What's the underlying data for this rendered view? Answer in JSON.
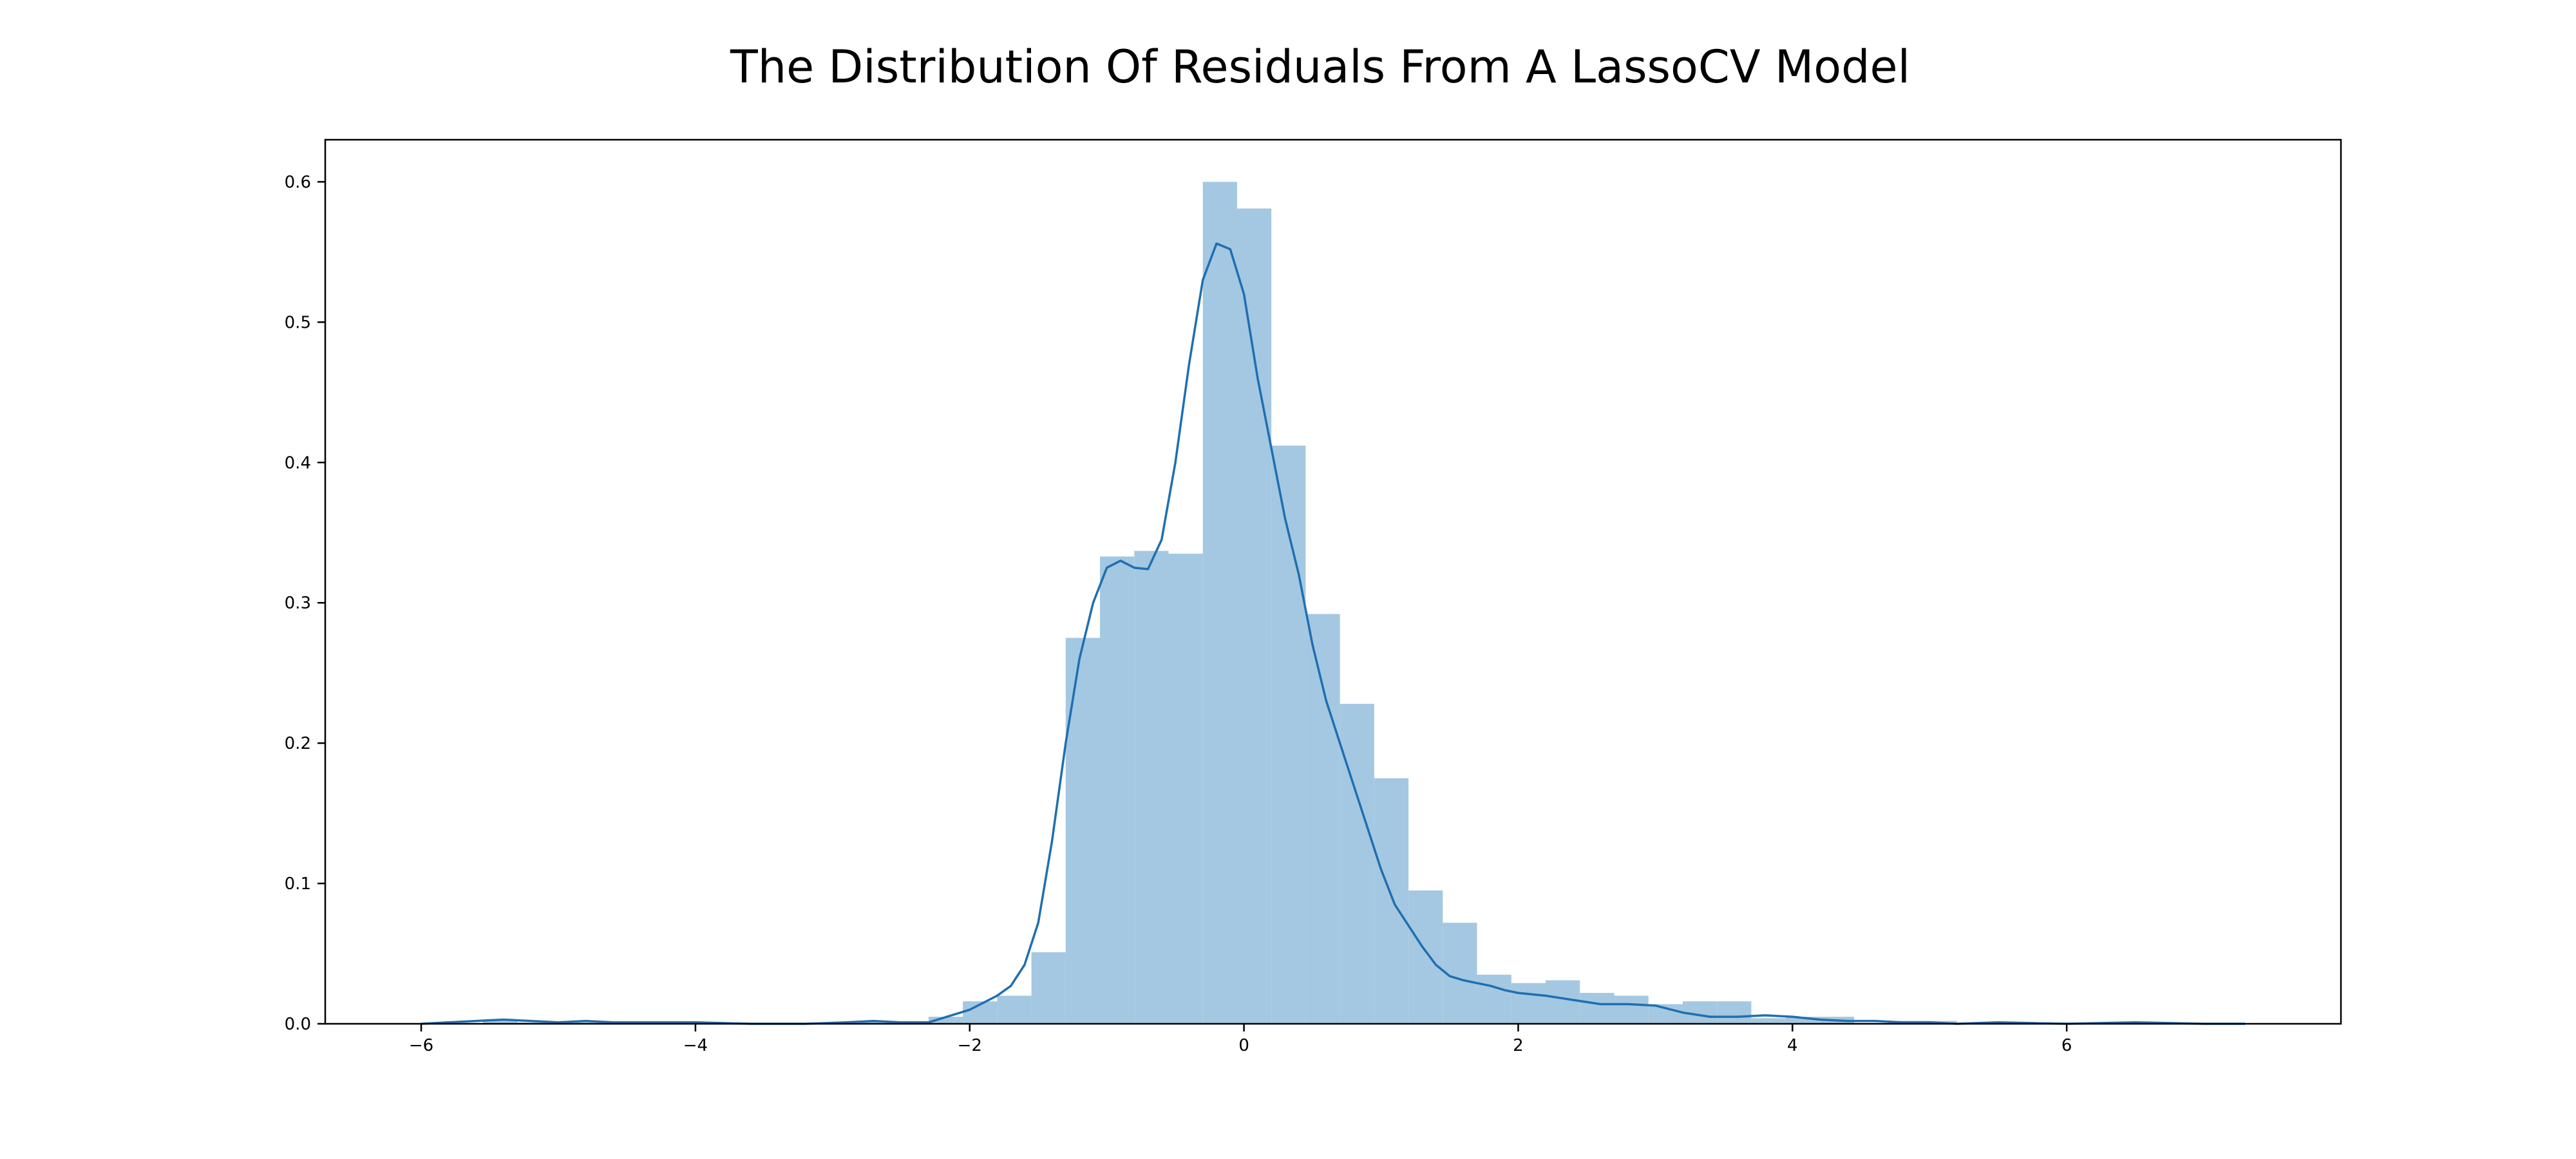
{
  "chart_data": {
    "type": "bar",
    "title": "The Distribution Of Residuals From A LassoCV Model",
    "xlabel": "",
    "ylabel": "",
    "xlim": [
      -6.7,
      8.0
    ],
    "ylim": [
      0,
      0.63
    ],
    "x_ticks": [
      -6,
      -4,
      -2,
      0,
      2,
      4,
      6
    ],
    "x_tick_labels": [
      "−6",
      "−4",
      "−2",
      "0",
      "2",
      "4",
      "6"
    ],
    "y_ticks": [
      0.0,
      0.1,
      0.2,
      0.3,
      0.4,
      0.5,
      0.6
    ],
    "y_tick_labels": [
      "0.0",
      "0.1",
      "0.2",
      "0.3",
      "0.4",
      "0.5",
      "0.6"
    ],
    "grid": false,
    "bin_width": 0.25,
    "histogram": [
      {
        "x0": -5.55,
        "x1": -5.3,
        "y": 0.003
      },
      {
        "x0": -5.3,
        "x1": -5.05,
        "y": 0.001
      },
      {
        "x0": -5.05,
        "x1": -4.8,
        "y": 0.001
      },
      {
        "x0": -4.8,
        "x1": -4.55,
        "y": 0.001
      },
      {
        "x0": -4.3,
        "x1": -4.05,
        "y": 0.001
      },
      {
        "x0": -2.8,
        "x1": -2.55,
        "y": 0.002
      },
      {
        "x0": -2.3,
        "x1": -2.05,
        "y": 0.005
      },
      {
        "x0": -2.05,
        "x1": -1.8,
        "y": 0.016
      },
      {
        "x0": -1.8,
        "x1": -1.55,
        "y": 0.02
      },
      {
        "x0": -1.55,
        "x1": -1.3,
        "y": 0.051
      },
      {
        "x0": -1.3,
        "x1": -1.05,
        "y": 0.275
      },
      {
        "x0": -1.05,
        "x1": -0.8,
        "y": 0.333
      },
      {
        "x0": -0.8,
        "x1": -0.55,
        "y": 0.337
      },
      {
        "x0": -0.55,
        "x1": -0.3,
        "y": 0.335
      },
      {
        "x0": -0.3,
        "x1": -0.05,
        "y": 0.6
      },
      {
        "x0": -0.05,
        "x1": 0.2,
        "y": 0.581
      },
      {
        "x0": 0.2,
        "x1": 0.45,
        "y": 0.412
      },
      {
        "x0": 0.45,
        "x1": 0.7,
        "y": 0.292
      },
      {
        "x0": 0.7,
        "x1": 0.95,
        "y": 0.228
      },
      {
        "x0": 0.95,
        "x1": 1.2,
        "y": 0.175
      },
      {
        "x0": 1.2,
        "x1": 1.45,
        "y": 0.095
      },
      {
        "x0": 1.45,
        "x1": 1.7,
        "y": 0.072
      },
      {
        "x0": 1.7,
        "x1": 1.95,
        "y": 0.035
      },
      {
        "x0": 1.95,
        "x1": 2.2,
        "y": 0.029
      },
      {
        "x0": 2.2,
        "x1": 2.45,
        "y": 0.031
      },
      {
        "x0": 2.45,
        "x1": 2.7,
        "y": 0.022
      },
      {
        "x0": 2.7,
        "x1": 2.95,
        "y": 0.02
      },
      {
        "x0": 2.95,
        "x1": 3.2,
        "y": 0.014
      },
      {
        "x0": 3.2,
        "x1": 3.45,
        "y": 0.016
      },
      {
        "x0": 3.45,
        "x1": 3.7,
        "y": 0.016
      },
      {
        "x0": 3.7,
        "x1": 3.95,
        "y": 0.004
      },
      {
        "x0": 3.95,
        "x1": 4.2,
        "y": 0.005
      },
      {
        "x0": 4.2,
        "x1": 4.45,
        "y": 0.005
      },
      {
        "x0": 4.7,
        "x1": 4.95,
        "y": 0.002
      },
      {
        "x0": 4.95,
        "x1": 5.2,
        "y": 0.002
      }
    ],
    "kde": {
      "x": [
        -6.0,
        -5.8,
        -5.6,
        -5.4,
        -5.2,
        -5.0,
        -4.8,
        -4.6,
        -4.4,
        -4.2,
        -4.0,
        -3.6,
        -3.2,
        -2.9,
        -2.7,
        -2.5,
        -2.3,
        -2.2,
        -2.0,
        -1.9,
        -1.8,
        -1.7,
        -1.6,
        -1.5,
        -1.4,
        -1.3,
        -1.2,
        -1.1,
        -1.0,
        -0.9,
        -0.8,
        -0.7,
        -0.6,
        -0.5,
        -0.4,
        -0.3,
        -0.2,
        -0.1,
        0.0,
        0.1,
        0.2,
        0.3,
        0.4,
        0.5,
        0.6,
        0.7,
        0.8,
        0.9,
        1.0,
        1.1,
        1.2,
        1.3,
        1.4,
        1.5,
        1.6,
        1.7,
        1.8,
        1.9,
        2.0,
        2.2,
        2.4,
        2.6,
        2.8,
        3.0,
        3.2,
        3.4,
        3.6,
        3.8,
        4.0,
        4.2,
        4.4,
        4.6,
        4.8,
        5.0,
        5.2,
        5.5,
        6.0,
        6.5,
        7.0,
        7.3
      ],
      "y": [
        0.0,
        0.001,
        0.002,
        0.003,
        0.002,
        0.001,
        0.002,
        0.001,
        0.001,
        0.001,
        0.001,
        0.0,
        0.0,
        0.001,
        0.002,
        0.001,
        0.001,
        0.004,
        0.01,
        0.015,
        0.02,
        0.027,
        0.042,
        0.072,
        0.13,
        0.2,
        0.26,
        0.3,
        0.325,
        0.33,
        0.325,
        0.324,
        0.345,
        0.4,
        0.47,
        0.53,
        0.556,
        0.552,
        0.52,
        0.46,
        0.41,
        0.36,
        0.32,
        0.27,
        0.23,
        0.2,
        0.17,
        0.14,
        0.11,
        0.085,
        0.07,
        0.055,
        0.042,
        0.034,
        0.031,
        0.029,
        0.027,
        0.024,
        0.022,
        0.02,
        0.017,
        0.014,
        0.014,
        0.013,
        0.008,
        0.005,
        0.005,
        0.006,
        0.005,
        0.003,
        0.002,
        0.002,
        0.001,
        0.001,
        0.0,
        0.001,
        0.0,
        0.001,
        0.0,
        0.0
      ]
    },
    "colors": {
      "bar_fill": "#a4c8e1",
      "line": "#1f6fb0"
    }
  }
}
